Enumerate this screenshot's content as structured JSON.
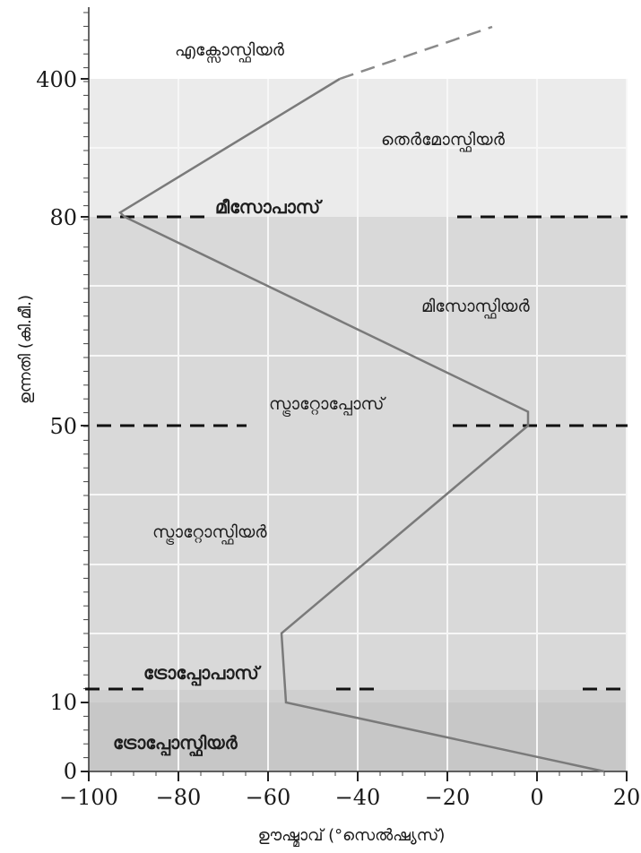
{
  "chart_data": {
    "type": "line",
    "title": "",
    "xlabel": "ഊഷ്മാവ് (°സെൽഷ്യസ്)",
    "ylabel": "ഉന്നതി (കി.മീ.)",
    "xlim": [
      -100,
      20
    ],
    "x_ticks": [
      -100,
      -80,
      -60,
      -40,
      -20,
      0,
      20
    ],
    "x_tick_labels": [
      "−100",
      "−80",
      "−60",
      "−40",
      "−20",
      "0",
      "20"
    ],
    "y_tick_labels": [
      "0",
      "10",
      "50",
      "80",
      "400"
    ],
    "y_scale": "non-uniform (0, 10, 50, 80, 400 km marked)",
    "grid": true,
    "series": [
      {
        "points": [
          {
            "temp": 15,
            "alt": 0
          },
          {
            "temp": -56,
            "alt": 10
          },
          {
            "temp": -57,
            "alt": 20
          },
          {
            "temp": -2,
            "alt": 50
          },
          {
            "temp": -2,
            "alt": 52
          },
          {
            "temp": -92,
            "alt": 80
          },
          {
            "temp": -93,
            "alt": 90
          },
          {
            "temp": -44,
            "alt": 400
          }
        ],
        "extension": [
          {
            "temp": -44,
            "alt": 400
          },
          {
            "temp": -10,
            "alt": "above 400"
          }
        ]
      }
    ],
    "layers": [
      {
        "id": "exosphere",
        "label": "എക്സോസ്ഫിയർ",
        "bold": false
      },
      {
        "id": "thermosphere",
        "label": "തെർമോസ്ഫിയർ",
        "bold": false
      },
      {
        "id": "mesopause",
        "label": "മീസോപാസ്",
        "bold": true
      },
      {
        "id": "mesosphere",
        "label": "മിസോസ്ഫിയർ",
        "bold": false
      },
      {
        "id": "stratopause",
        "label": "സ്ട്രാറ്റോപ്പോസ്",
        "bold": false
      },
      {
        "id": "stratosphere",
        "label": "സ്ട്രാറ്റോസ്ഫിയർ",
        "bold": false
      },
      {
        "id": "tropopause",
        "label": "ട്രോപ്പോപാസ്",
        "bold": true
      },
      {
        "id": "troposphere",
        "label": "ട്രോപ്പോസ്ഫിയർ",
        "bold": true
      }
    ],
    "boundaries": [
      {
        "name": "tropopause",
        "alt": 10
      },
      {
        "name": "stratopause",
        "alt": 50
      },
      {
        "name": "mesopause",
        "alt": 80
      }
    ],
    "colors": {
      "troposphere_band": "#c7c7c7",
      "middle_band": "#d9d9d9",
      "thermosphere_band": "#ebebeb",
      "grid": "#f7f7f7",
      "profile_line": "#7a7a7a",
      "boundary_dash": "#111111"
    }
  }
}
